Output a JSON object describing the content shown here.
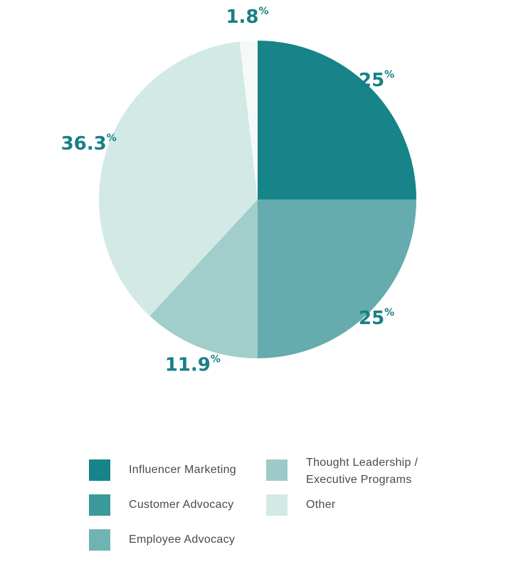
{
  "chart_data": {
    "type": "pie",
    "title": "",
    "categories": [
      "Influencer Marketing",
      "Customer Advocacy",
      "Employee Advocacy",
      "Thought Leadership / Executive Programs",
      "Other"
    ],
    "values": [
      25,
      25,
      11.9,
      36.3,
      1.8
    ],
    "value_labels": [
      "25",
      "25",
      "11.9",
      "36.3",
      "1.8"
    ],
    "value_suffix": "%",
    "colors": [
      "#168488",
      "#66abad",
      "#a1cdcb",
      "#d3e9e6",
      "#f5faf9"
    ],
    "legend_placement": "bottom"
  },
  "legend": {
    "items": [
      {
        "label": "Influencer Marketing",
        "color": "#168488"
      },
      {
        "label": "Customer Advocacy",
        "color": "#3a999b"
      },
      {
        "label": "Employee Advocacy",
        "color": "#6fb3b4"
      },
      {
        "label_line1": "Thought Leadership /",
        "label_line2": "Executive Programs",
        "color": "#9ccac8"
      },
      {
        "label": "Other",
        "color": "#d3e9e6"
      }
    ]
  }
}
